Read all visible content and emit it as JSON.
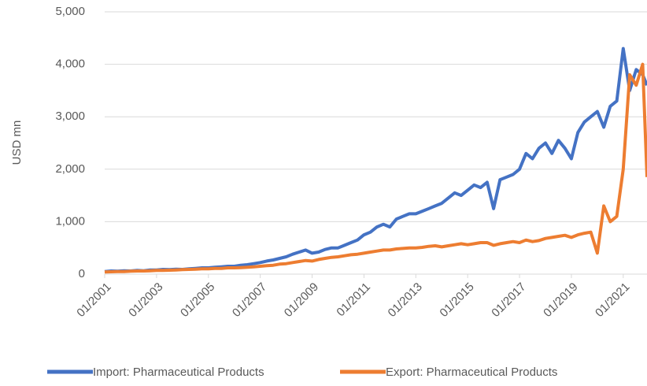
{
  "chart_data": {
    "type": "line",
    "y_label": "USD mn",
    "x": [
      "01/2001",
      "04/2001",
      "07/2001",
      "10/2001",
      "01/2002",
      "04/2002",
      "07/2002",
      "10/2002",
      "01/2003",
      "04/2003",
      "07/2003",
      "10/2003",
      "01/2004",
      "04/2004",
      "07/2004",
      "10/2004",
      "01/2005",
      "04/2005",
      "07/2005",
      "10/2005",
      "01/2006",
      "04/2006",
      "07/2006",
      "10/2006",
      "01/2007",
      "04/2007",
      "07/2007",
      "10/2007",
      "01/2008",
      "04/2008",
      "07/2008",
      "10/2008",
      "01/2009",
      "04/2009",
      "07/2009",
      "10/2009",
      "01/2010",
      "04/2010",
      "07/2010",
      "10/2010",
      "01/2011",
      "04/2011",
      "07/2011",
      "10/2011",
      "01/2012",
      "04/2012",
      "07/2012",
      "10/2012",
      "01/2013",
      "04/2013",
      "07/2013",
      "10/2013",
      "01/2014",
      "04/2014",
      "07/2014",
      "10/2014",
      "01/2015",
      "04/2015",
      "07/2015",
      "10/2015",
      "01/2016",
      "04/2016",
      "07/2016",
      "10/2016",
      "01/2017",
      "04/2017",
      "07/2017",
      "10/2017",
      "01/2018",
      "04/2018",
      "07/2018",
      "10/2018",
      "01/2019",
      "04/2019",
      "07/2019",
      "10/2019",
      "01/2020",
      "04/2020",
      "07/2020",
      "10/2020",
      "01/2021",
      "04/2021",
      "07/2021",
      "10/2021",
      "12/2021"
    ],
    "series": [
      {
        "name": "Import: Pharmaceutical Products",
        "color": "#4472c4",
        "values": [
          50,
          60,
          55,
          65,
          60,
          70,
          65,
          80,
          80,
          90,
          85,
          95,
          90,
          100,
          110,
          120,
          120,
          130,
          140,
          150,
          150,
          170,
          180,
          200,
          220,
          250,
          270,
          300,
          330,
          380,
          420,
          460,
          400,
          420,
          470,
          500,
          500,
          550,
          600,
          650,
          750,
          800,
          900,
          950,
          900,
          1050,
          1100,
          1150,
          1150,
          1200,
          1250,
          1300,
          1350,
          1450,
          1550,
          1500,
          1600,
          1700,
          1650,
          1750,
          1250,
          1800,
          1850,
          1900,
          2000,
          2300,
          2200,
          2400,
          2500,
          2300,
          2550,
          2400,
          2200,
          2700,
          2900,
          3000,
          3100,
          2800,
          3200,
          3300,
          4300,
          3500,
          3900,
          3800,
          3600
        ]
      },
      {
        "name": "Export: Pharmaceutical Products",
        "color": "#ed7d31",
        "values": [
          40,
          45,
          50,
          50,
          55,
          60,
          60,
          65,
          70,
          70,
          75,
          80,
          85,
          90,
          95,
          100,
          100,
          110,
          110,
          120,
          120,
          125,
          130,
          140,
          150,
          160,
          170,
          190,
          200,
          220,
          240,
          260,
          250,
          280,
          300,
          320,
          330,
          350,
          370,
          380,
          400,
          420,
          440,
          460,
          460,
          480,
          490,
          500,
          500,
          510,
          530,
          540,
          520,
          540,
          560,
          580,
          560,
          580,
          600,
          600,
          550,
          580,
          600,
          620,
          600,
          650,
          620,
          640,
          680,
          700,
          720,
          740,
          700,
          750,
          780,
          800,
          400,
          1300,
          1000,
          1100,
          2000,
          3800,
          3600,
          4000,
          1850
        ]
      }
    ],
    "xlim": [
      "01/2001",
      "12/2021"
    ],
    "xticks": [
      "01/2001",
      "01/2003",
      "01/2005",
      "01/2007",
      "01/2009",
      "01/2011",
      "01/2013",
      "01/2015",
      "01/2017",
      "01/2019",
      "01/2021"
    ],
    "ylim": [
      0,
      5000
    ],
    "yticks": [
      0,
      {
        "value": 1000,
        "label": "1,000"
      },
      {
        "value": 2000,
        "label": "2,000"
      },
      {
        "value": 3000,
        "label": "3,000"
      },
      {
        "value": 4000,
        "label": "4,000"
      },
      {
        "value": 5000,
        "label": "5,000"
      }
    ],
    "grid": true,
    "legend": "bottom"
  }
}
